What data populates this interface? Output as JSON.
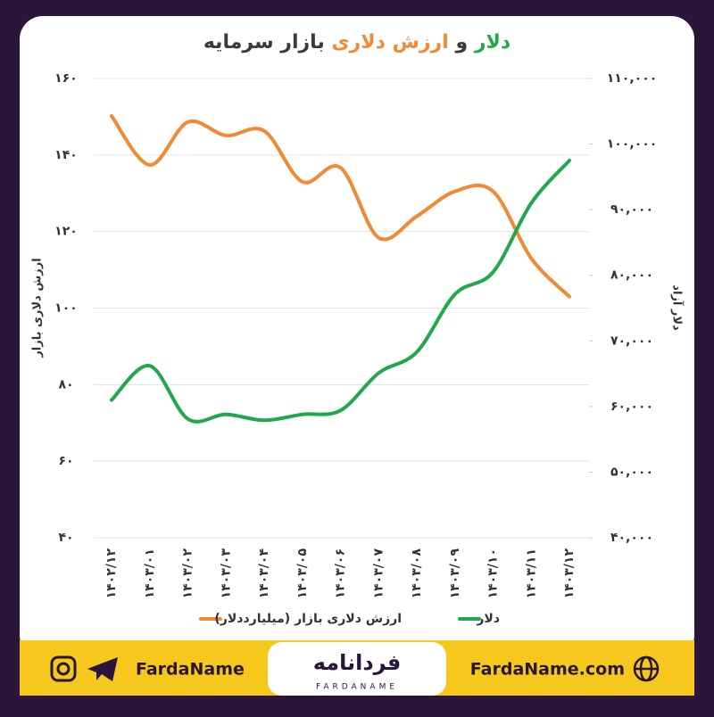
{
  "chart_data": {
    "type": "line",
    "title_segments": [
      {
        "text": "دلار",
        "color": "#21a84a"
      },
      {
        "text": "و",
        "color": "#3a3a3a"
      },
      {
        "text": "ارزش دلاری",
        "color": "#ef8a35"
      },
      {
        "text": "بازار سرمایه",
        "color": "#3a3a3a"
      }
    ],
    "ylabel": "ارزش دلاری بازار",
    "y2label": "دلار آزاد",
    "watermark": "FARDANAME",
    "categories": [
      "۱۴۰۲/۱۲",
      "۱۴۰۳/۰۱",
      "۱۴۰۳/۰۲",
      "۱۴۰۳/۰۳",
      "۱۴۰۳/۰۴",
      "۱۴۰۳/۰۵",
      "۱۴۰۳/۰۶",
      "۱۴۰۳/۰۷",
      "۱۴۰۳/۰۸",
      "۱۴۰۳/۰۹",
      "۱۴۰۳/۱۰",
      "۱۴۰۳/۱۱",
      "۱۴۰۳/۱۲"
    ],
    "series": [
      {
        "name": "ارزش دلاری بازار (میلیارددلار)",
        "color": "#ef8a35",
        "axis": "y",
        "values": [
          150.2,
          137.4,
          148.6,
          145.1,
          146.3,
          133,
          136.7,
          118.4,
          124,
          130.5,
          130.5,
          113,
          103
        ]
      },
      {
        "name": "دلار",
        "color": "#21a84a",
        "axis": "y2",
        "values": [
          61000,
          66200,
          58100,
          58800,
          57900,
          58800,
          59400,
          65100,
          68300,
          77100,
          80500,
          91000,
          97500
        ]
      }
    ],
    "ylim": [
      40,
      160
    ],
    "yticks": [
      {
        "value": 40,
        "label": "۴۰"
      },
      {
        "value": 60,
        "label": "۶۰"
      },
      {
        "value": 80,
        "label": "۸۰"
      },
      {
        "value": 100,
        "label": "۱۰۰"
      },
      {
        "value": 120,
        "label": "۱۲۰"
      },
      {
        "value": 140,
        "label": "۱۴۰"
      },
      {
        "value": 160,
        "label": "۱۶۰"
      }
    ],
    "y2lim": [
      40000,
      110000
    ],
    "y2ticks": [
      {
        "value": 40000,
        "label": "۴۰,۰۰۰"
      },
      {
        "value": 50000,
        "label": "۵۰,۰۰۰"
      },
      {
        "value": 60000,
        "label": "۶۰,۰۰۰"
      },
      {
        "value": 70000,
        "label": "۷۰,۰۰۰"
      },
      {
        "value": 80000,
        "label": "۸۰,۰۰۰"
      },
      {
        "value": 90000,
        "label": "۹۰,۰۰۰"
      },
      {
        "value": 100000,
        "label": "۱۰۰,۰۰۰"
      },
      {
        "value": 110000,
        "label": "۱۱۰,۰۰۰"
      }
    ],
    "grid": true,
    "legend": "bottom"
  },
  "footer": {
    "social": "FardaName",
    "logo": "فردانامه",
    "logo_sub": "FARDANAME",
    "website": "FardaName.com"
  }
}
